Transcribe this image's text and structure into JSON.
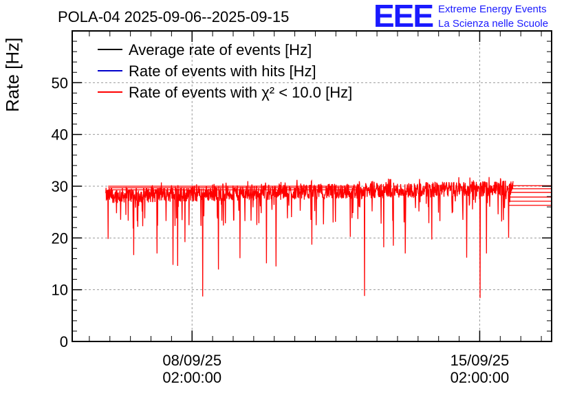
{
  "chart_data": {
    "type": "line",
    "title": "POLA-04 2025-09-06--2025-09-15",
    "ylabel": "Rate [Hz]",
    "xlabel": "",
    "ylim": [
      0,
      60
    ],
    "yticks": [
      0,
      10,
      20,
      30,
      40,
      50
    ],
    "xlim": [
      0,
      100
    ],
    "xticks": [
      {
        "pos": 25,
        "date": "08/09/25",
        "time": "02:00:00"
      },
      {
        "pos": 85,
        "date": "15/09/25",
        "time": "02:00:00"
      }
    ],
    "grid": true,
    "legend_position": "top-left",
    "series": [
      {
        "name": "Average rate of events [Hz]",
        "color": "#000000"
      },
      {
        "name": "Rate of events with hits [Hz]",
        "color": "#0000cc"
      },
      {
        "name": "Rate of events with χ² < 10.0 [Hz]",
        "color": "#ff0000",
        "x_range": [
          7,
          92
        ],
        "baseline_start": 28.2,
        "baseline_end": 29.6,
        "dips": [
          {
            "x": 7.5,
            "y": 19.8
          },
          {
            "x": 12.8,
            "y": 16.7
          },
          {
            "x": 17.7,
            "y": 17.0
          },
          {
            "x": 21.0,
            "y": 14.8
          },
          {
            "x": 22.0,
            "y": 14.6
          },
          {
            "x": 23.5,
            "y": 19.2
          },
          {
            "x": 27.2,
            "y": 8.7
          },
          {
            "x": 30.5,
            "y": 13.9
          },
          {
            "x": 35.0,
            "y": 16.1
          },
          {
            "x": 40.5,
            "y": 15.1
          },
          {
            "x": 42.5,
            "y": 14.5
          },
          {
            "x": 50.0,
            "y": 18.7
          },
          {
            "x": 58.0,
            "y": 20.2
          },
          {
            "x": 61.0,
            "y": 8.8
          },
          {
            "x": 65.0,
            "y": 18.2
          },
          {
            "x": 67.0,
            "y": 18.5
          },
          {
            "x": 69.5,
            "y": 17.0
          },
          {
            "x": 75.0,
            "y": 19.7
          },
          {
            "x": 82.3,
            "y": 16.2
          },
          {
            "x": 85.1,
            "y": 8.4
          },
          {
            "x": 86.4,
            "y": 17.0
          },
          {
            "x": 91.0,
            "y": 20.0
          }
        ],
        "tail_levels": [
          30.1,
          29.5,
          28.8,
          27.9,
          27.1,
          26.3
        ]
      }
    ]
  },
  "logo": {
    "mark": "EEE",
    "line1": "Extreme Energy Events",
    "line2": "La Scienza nelle Scuole"
  }
}
